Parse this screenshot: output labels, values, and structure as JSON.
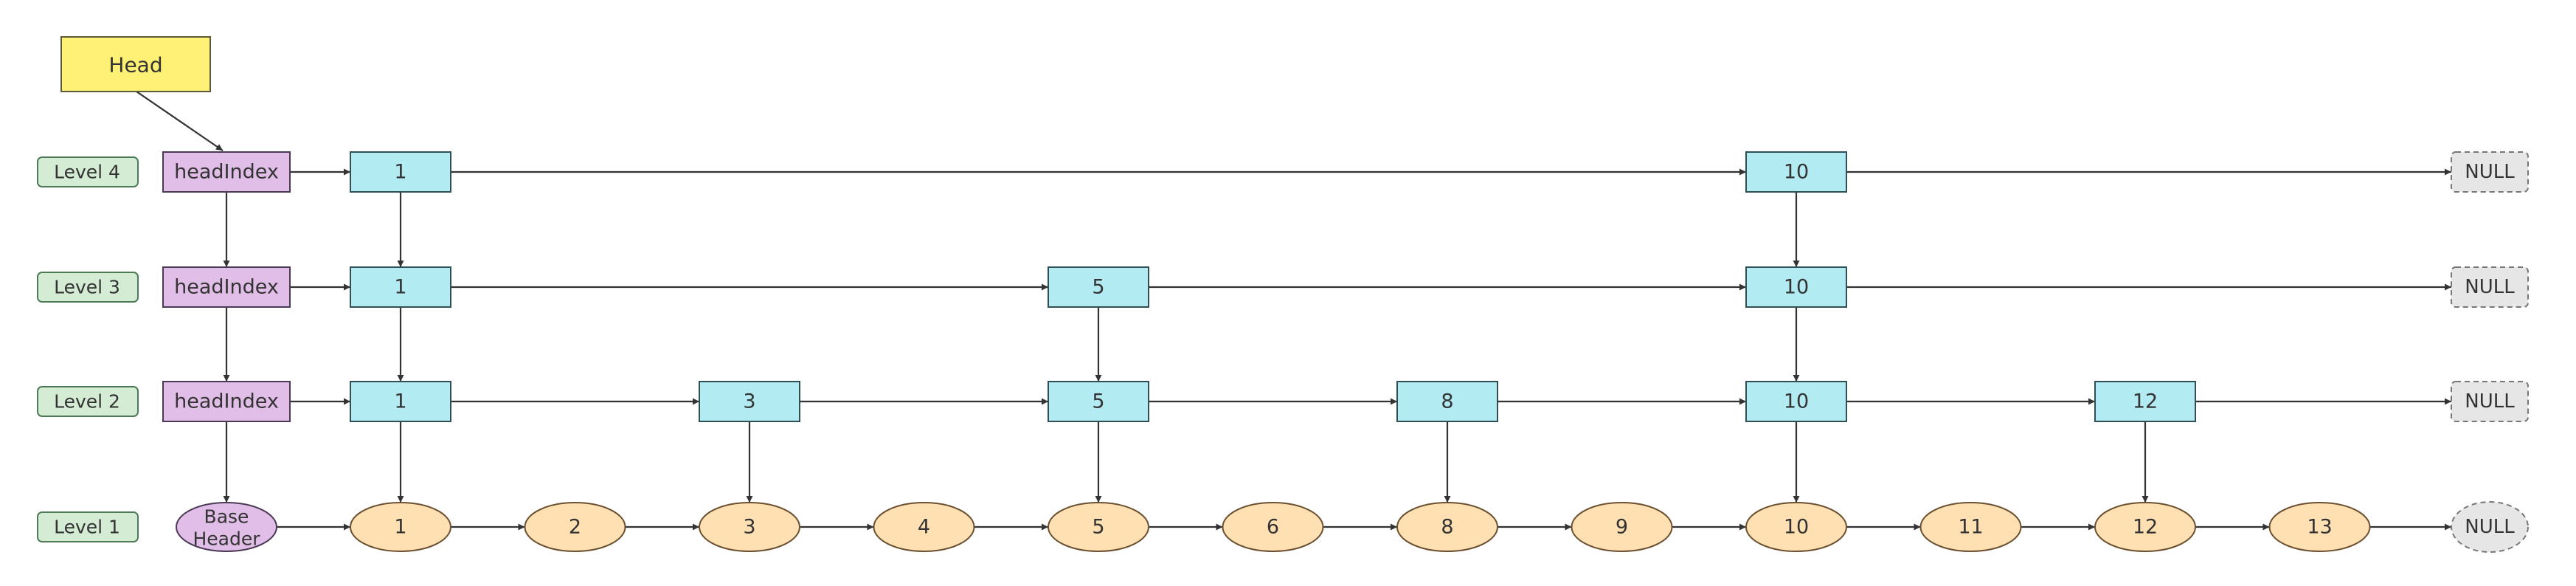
{
  "head": {
    "label": "Head"
  },
  "level_labels": [
    "Level 4",
    "Level 3",
    "Level 2",
    "Level 1"
  ],
  "index_levels": [
    {
      "header": "headIndex",
      "nodes": [
        "1",
        "10"
      ]
    },
    {
      "header": "headIndex",
      "nodes": [
        "1",
        "5",
        "10"
      ]
    },
    {
      "header": "headIndex",
      "nodes": [
        "1",
        "3",
        "5",
        "8",
        "10",
        "12"
      ]
    }
  ],
  "base_level": {
    "header_lines": [
      "Base",
      "Header"
    ],
    "nodes": [
      "1",
      "2",
      "3",
      "4",
      "5",
      "6",
      "8",
      "9",
      "10",
      "11",
      "12",
      "13"
    ]
  },
  "null_label": "NULL",
  "colors": {
    "head_fill": "#fff176",
    "head_stroke": "#5a5a3a",
    "level_fill": "#d5ecd4",
    "level_stroke": "#4e7a57",
    "header_fill": "#e1bee7",
    "header_stroke": "#4a3a55",
    "index_fill": "#b2ebf2",
    "index_stroke": "#2f4f55",
    "data_fill": "#ffe0b2",
    "data_stroke": "#6a5030",
    "null_fill": "#e6e6e6",
    "null_stroke": "#777777"
  }
}
